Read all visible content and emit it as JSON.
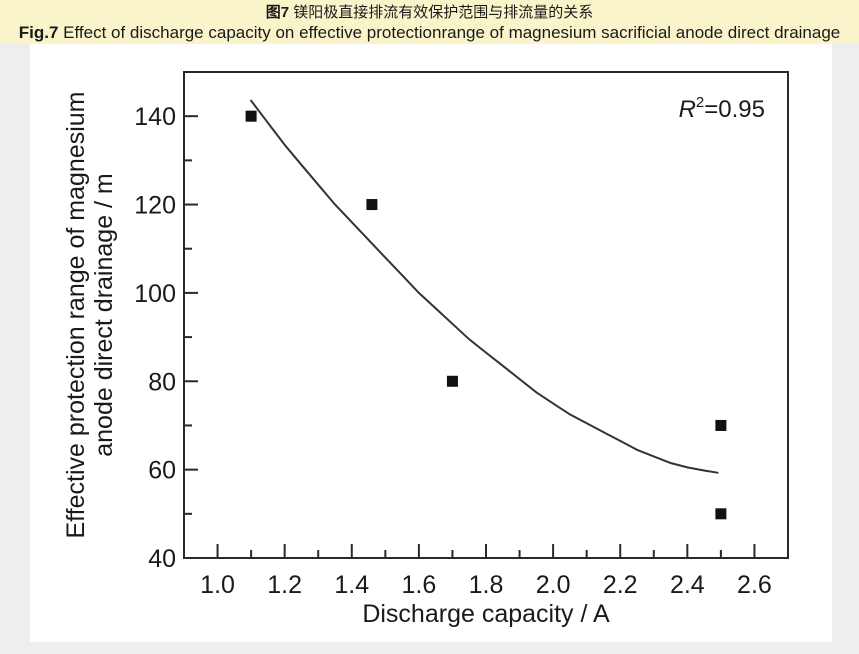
{
  "page": {
    "background_color": "#eeeeee",
    "panel_color": "#ffffff"
  },
  "caption": {
    "background_color": "#faf4cb",
    "line1_prefix": "图7",
    "line1_text": " 镁阳极直接排流有效保护范围与排流量的关系",
    "line2_prefix": "Fig.7",
    "line2_text": " Effect of discharge capacity on effective protectionrange of magnesium sacrificial anode direct drainage"
  },
  "chart_data": {
    "type": "scatter",
    "title": "",
    "xlabel": "Discharge capacity / A",
    "ylabel_line1": "Effective protection range of magnesium",
    "ylabel_line2": "anode direct drainage / m",
    "xlim": [
      0.9,
      2.7
    ],
    "ylim": [
      40,
      150
    ],
    "grid": false,
    "legend": null,
    "x_major_ticks": [
      1.0,
      1.2,
      1.4,
      1.6,
      1.8,
      2.0,
      2.2,
      2.4,
      2.6
    ],
    "x_tick_labels": [
      "1.0",
      "1.2",
      "1.4",
      "1.6",
      "1.8",
      "2.0",
      "2.2",
      "2.4",
      "2.6"
    ],
    "x_minor_ticks": [
      1.1,
      1.3,
      1.5,
      1.7,
      1.9,
      2.1,
      2.3,
      2.5
    ],
    "y_major_ticks": [
      40,
      60,
      80,
      100,
      120,
      140
    ],
    "y_tick_labels": [
      "40",
      "60",
      "80",
      "100",
      "120",
      "140"
    ],
    "y_minor_ticks": [
      50,
      70,
      90,
      110,
      130
    ],
    "points": [
      {
        "x": 1.1,
        "y": 140
      },
      {
        "x": 1.46,
        "y": 120
      },
      {
        "x": 1.7,
        "y": 80
      },
      {
        "x": 2.5,
        "y": 70
      },
      {
        "x": 2.5,
        "y": 50
      }
    ],
    "fit_curve": [
      [
        1.1,
        143.5
      ],
      [
        1.15,
        138.5
      ],
      [
        1.2,
        133.5
      ],
      [
        1.25,
        129.0
      ],
      [
        1.3,
        124.5
      ],
      [
        1.35,
        120.0
      ],
      [
        1.4,
        116.0
      ],
      [
        1.45,
        112.0
      ],
      [
        1.5,
        108.0
      ],
      [
        1.55,
        104.0
      ],
      [
        1.6,
        100.0
      ],
      [
        1.65,
        96.5
      ],
      [
        1.7,
        93.0
      ],
      [
        1.75,
        89.5
      ],
      [
        1.8,
        86.5
      ],
      [
        1.85,
        83.5
      ],
      [
        1.9,
        80.5
      ],
      [
        1.95,
        77.5
      ],
      [
        2.0,
        75.0
      ],
      [
        2.05,
        72.5
      ],
      [
        2.1,
        70.5
      ],
      [
        2.15,
        68.5
      ],
      [
        2.2,
        66.5
      ],
      [
        2.25,
        64.5
      ],
      [
        2.3,
        63.0
      ],
      [
        2.35,
        61.5
      ],
      [
        2.4,
        60.5
      ],
      [
        2.45,
        59.8
      ],
      [
        2.49,
        59.3
      ]
    ],
    "annotation": {
      "r": "R",
      "sup": "2",
      "rest": "=0.95"
    },
    "marker": "square",
    "marker_size": 11,
    "marker_color": "#111111",
    "curve_color": "#333333",
    "axis_color": "#2a2a2a"
  }
}
